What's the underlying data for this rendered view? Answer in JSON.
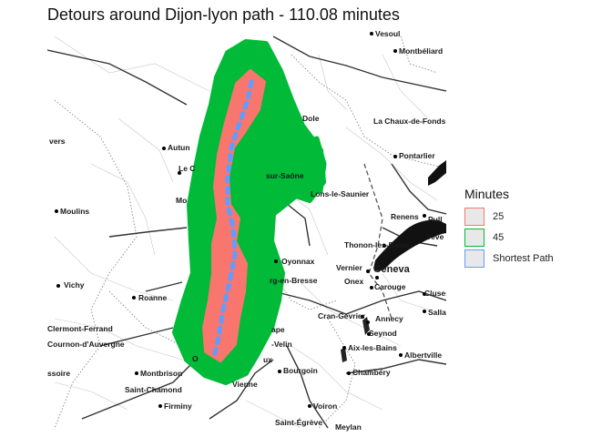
{
  "title": "Detours around Dijon-lyon path - 110.08 minutes",
  "legend": {
    "title": "Minutes",
    "items": [
      {
        "label": "25",
        "color": "#F8766D"
      },
      {
        "label": "45",
        "color": "#00BA38"
      },
      {
        "label": "Shortest Path",
        "color": "#619CFF"
      }
    ]
  },
  "cities": [
    "Vesoul",
    "Montbéliard",
    "Dole",
    "La Chaux-de-Fonds",
    "vers",
    "Autun",
    "Pontarlier",
    "Le C",
    "sur-Saône",
    "Lons-le-Saunier",
    "Mo",
    "Moulins",
    "Renens",
    "Pull",
    "Thonon-les-Bains",
    "Veve",
    "Oyonnax",
    "Vernier",
    "Geneva",
    "rg-en-Bresse",
    "Onex",
    "Carouge",
    "Cluses",
    "Vichy",
    "Roanne",
    "Salla",
    "Cran-Gevrier",
    "Annecy",
    "Seynod",
    "Clermont-Ferrand",
    "Cournon-d'Auvergne",
    "ape",
    "-Velin",
    "Aix-les-Bains",
    "Albertville",
    "ssoire",
    "Montbrison",
    "O",
    "ux",
    "Bourgoin",
    "Chambéry",
    "Saint-Chamond",
    "Vienne",
    "Firminy",
    "Voiron",
    "Saint-Égrève",
    "Meylan"
  ]
}
